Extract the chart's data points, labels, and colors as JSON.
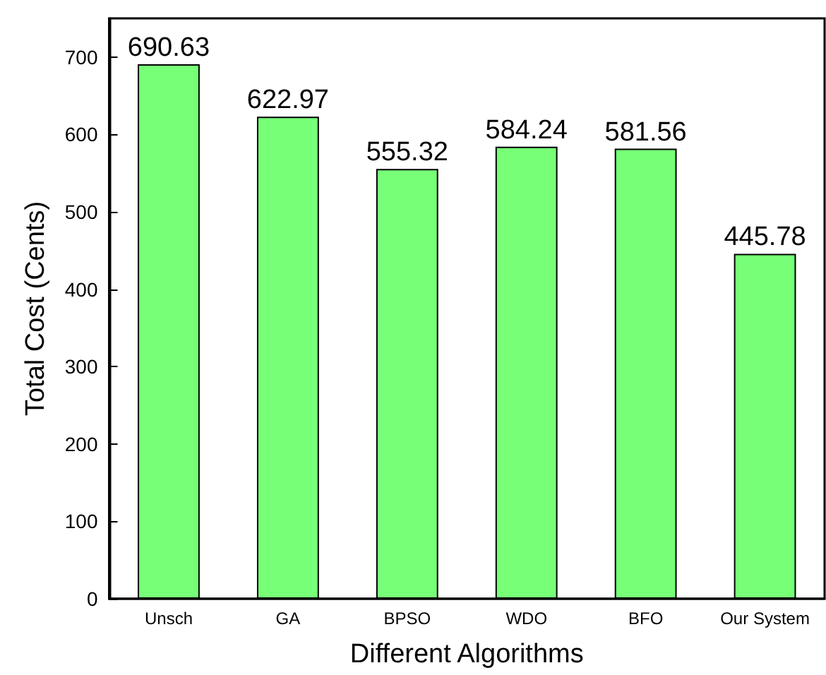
{
  "chart_data": {
    "type": "bar",
    "xlabel": "Different Algorithms",
    "ylabel": "Total Cost (Cents)",
    "categories": [
      "Unsch",
      "GA",
      "BPSO",
      "WDO",
      "BFO",
      "Our System"
    ],
    "values": [
      690.63,
      622.97,
      555.32,
      584.24,
      581.56,
      445.78
    ],
    "color": "#77ff77",
    "ylim": [
      0,
      750
    ],
    "yticks": [
      0,
      100,
      200,
      300,
      400,
      500,
      600,
      700
    ],
    "grid": false,
    "data_labels": true
  }
}
